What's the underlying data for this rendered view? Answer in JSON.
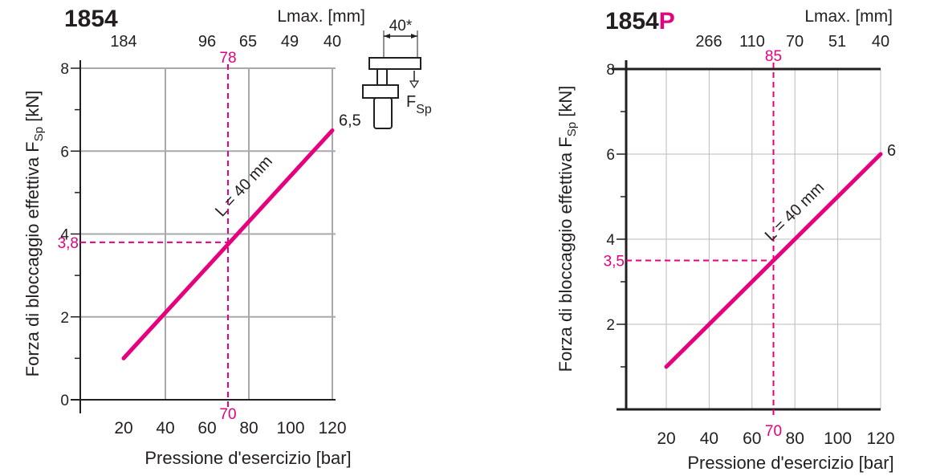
{
  "accent_color": "#e6007e",
  "chart_data": [
    {
      "type": "line",
      "title": "1854",
      "title_suffix": "",
      "xlabel": "Pressione d'esercizio [bar]",
      "ylabel": "Forza di bloccaggio effettiva F",
      "ylabel_sub": "Sp",
      "ylabel_unit": " [kN]",
      "top_axis_label": "Lmax. [mm]",
      "x_ticks": [
        "20",
        "40",
        "60",
        "80",
        "100",
        "120"
      ],
      "y_ticks": [
        "0",
        "2",
        "4",
        "6",
        "8"
      ],
      "top_ticks": [
        "184",
        "96",
        "65",
        "49",
        "40"
      ],
      "xlim": [
        0,
        120
      ],
      "ylim": [
        0,
        8
      ],
      "grid": true,
      "series": [
        {
          "name": "L = 40 mm",
          "x": [
            20,
            120
          ],
          "y": [
            1.0,
            6.5
          ],
          "color": "#e6007e"
        }
      ],
      "end_label": "6,5",
      "marker": {
        "x": 70,
        "y": 3.8,
        "x_label": "70",
        "y_label": "3,8",
        "top_label": "78"
      },
      "inset": {
        "dim_label": "40*",
        "force_label": "F",
        "force_sub": "Sp"
      }
    },
    {
      "type": "line",
      "title": "1854",
      "title_suffix": "P",
      "xlabel": "Pressione d'esercizio [bar]",
      "ylabel": "Forza di bloccaggio effettiva F",
      "ylabel_sub": "Sp",
      "ylabel_unit": " [kN]",
      "top_axis_label": "Lmax. [mm]",
      "x_ticks": [
        "20",
        "40",
        "60",
        "80",
        "100",
        "120"
      ],
      "y_ticks": [
        "2",
        "4",
        "6",
        "8"
      ],
      "top_ticks": [
        "266",
        "110",
        "70",
        "51",
        "40"
      ],
      "xlim": [
        0,
        120
      ],
      "ylim": [
        0,
        8
      ],
      "grid": true,
      "series": [
        {
          "name": "L = 40 mm",
          "x": [
            20,
            120
          ],
          "y": [
            1.0,
            6.0
          ],
          "color": "#e6007e"
        }
      ],
      "end_label": "6",
      "marker": {
        "x": 70,
        "y": 3.5,
        "x_label": "70",
        "y_label": "3,5",
        "top_label": "85"
      }
    }
  ]
}
